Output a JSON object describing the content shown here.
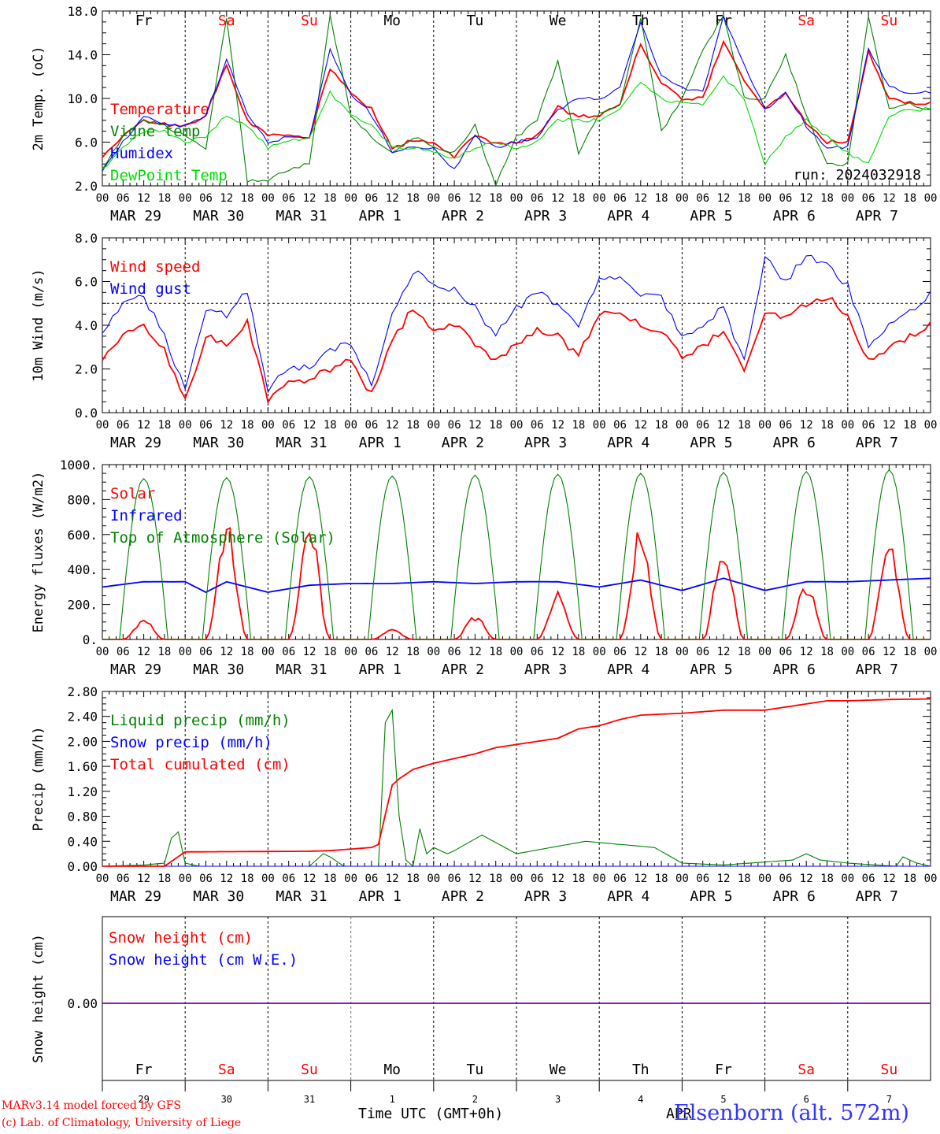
{
  "run_label": "run: 2024032918",
  "footer": {
    "model_line1": "MARv3.14 model forced by GFS",
    "model_line2": "(c) Lab. of Climatology, University of Liege",
    "time_label": "Time UTC (GMT+0h)",
    "station": "Elsenborn (alt. 572m)",
    "overlap_text": "APR"
  },
  "days": {
    "weekdays": [
      "Fr",
      "Sa",
      "Su",
      "Mo",
      "Tu",
      "We",
      "Th",
      "Fr",
      "Sa",
      "Su"
    ],
    "weekend_flags": [
      false,
      true,
      true,
      false,
      false,
      false,
      false,
      false,
      true,
      true
    ],
    "date_labels": [
      "MAR 29",
      "MAR 30",
      "MAR 31",
      "APR  1",
      "APR  2",
      "APR  3",
      "APR  4",
      "APR  5",
      "APR  6",
      "APR  7"
    ],
    "day_numbers": [
      "29",
      "30",
      "31",
      "1",
      "2",
      "3",
      "4",
      "5",
      "6",
      "7"
    ],
    "hour_ticks": [
      "00",
      "06",
      "12",
      "18"
    ]
  },
  "colors": {
    "red": "#ff0000",
    "green": "#008000",
    "blue": "#0000ff",
    "lightgreen": "#00dd00",
    "purple": "#8000a0",
    "weekend": "#ff0000"
  },
  "chart_data": [
    {
      "type": "line",
      "ylabel": "2m Temp. (oC)",
      "ylim": [
        2.0,
        18.0
      ],
      "yticks": [
        "2.0",
        "6.0",
        "10.0",
        "14.0",
        "18.0"
      ],
      "xlim_hours": [
        0,
        240
      ],
      "series": [
        {
          "name": "Temperature",
          "color": "red",
          "x": [
            0,
            6,
            12,
            18,
            24,
            30,
            36,
            42,
            48,
            54,
            60,
            66,
            72,
            78,
            84,
            90,
            96,
            102,
            108,
            114,
            120,
            126,
            132,
            138,
            144,
            150,
            156,
            162,
            168,
            174,
            180,
            186,
            192,
            198,
            204,
            210,
            216,
            222,
            228,
            234,
            240
          ],
          "values": [
            4.7,
            6.5,
            8.0,
            7.6,
            7.4,
            8.5,
            13.0,
            8.0,
            6.6,
            6.8,
            6.4,
            12.8,
            10.5,
            9.0,
            5.3,
            6.2,
            6.0,
            4.6,
            6.7,
            5.9,
            6.0,
            6.6,
            9.2,
            8.3,
            8.5,
            9.5,
            15.0,
            11.5,
            10.0,
            10.0,
            15.3,
            11.5,
            9.0,
            10.5,
            7.8,
            6.0,
            6.1,
            14.2,
            10.0,
            9.6,
            9.5
          ]
        },
        {
          "name": "Vigne temp",
          "color": "green",
          "x": [
            0,
            6,
            12,
            18,
            24,
            30,
            36,
            42,
            48,
            54,
            60,
            66,
            72,
            78,
            84,
            90,
            96,
            102,
            108,
            114,
            120,
            126,
            132,
            138,
            144,
            150,
            156,
            162,
            168,
            174,
            180,
            186,
            192,
            198,
            204,
            210,
            216,
            222,
            228,
            234,
            240
          ],
          "values": [
            3.5,
            6.5,
            8.0,
            7.5,
            6.5,
            5.5,
            17.5,
            2.5,
            2.5,
            3.5,
            4.0,
            17.5,
            8.5,
            6.5,
            5.0,
            6.5,
            5.5,
            5.0,
            7.5,
            2.0,
            6.5,
            8.0,
            13.5,
            5.0,
            8.5,
            9.5,
            17.5,
            7.0,
            10.0,
            14.5,
            17.5,
            10.0,
            10.0,
            14.0,
            8.5,
            4.0,
            4.0,
            17.5,
            9.0,
            9.5,
            9.0
          ]
        },
        {
          "name": "Humidex",
          "color": "blue",
          "x": [
            0,
            6,
            12,
            18,
            24,
            30,
            36,
            42,
            48,
            54,
            60,
            66,
            72,
            78,
            84,
            90,
            96,
            102,
            108,
            114,
            120,
            126,
            132,
            138,
            144,
            150,
            156,
            162,
            168,
            174,
            180,
            186,
            192,
            198,
            204,
            210,
            216,
            222,
            228,
            234,
            240
          ],
          "values": [
            3.3,
            6.0,
            8.5,
            7.5,
            7.5,
            8.5,
            13.5,
            8.5,
            6.0,
            6.5,
            6.5,
            14.5,
            10.5,
            8.5,
            5.0,
            5.5,
            5.5,
            3.5,
            6.5,
            5.5,
            6.0,
            6.5,
            9.0,
            10.0,
            10.0,
            11.0,
            17.0,
            12.0,
            11.0,
            10.5,
            17.5,
            13.0,
            9.0,
            10.5,
            7.5,
            5.5,
            5.5,
            14.5,
            11.0,
            10.5,
            10.5
          ]
        },
        {
          "name": "DewPoint Temp",
          "color": "lightgreen",
          "x": [
            0,
            6,
            12,
            18,
            24,
            30,
            36,
            42,
            48,
            54,
            60,
            66,
            72,
            78,
            84,
            90,
            96,
            102,
            108,
            114,
            120,
            126,
            132,
            138,
            144,
            150,
            156,
            162,
            168,
            174,
            180,
            186,
            192,
            198,
            204,
            210,
            216,
            222,
            228,
            234,
            240
          ],
          "values": [
            3.5,
            5.5,
            7.0,
            7.0,
            6.0,
            6.5,
            8.5,
            7.5,
            5.5,
            6.0,
            6.5,
            10.5,
            8.5,
            7.5,
            5.5,
            5.5,
            5.0,
            4.5,
            5.5,
            6.0,
            5.5,
            6.0,
            8.0,
            8.0,
            8.0,
            9.0,
            11.5,
            10.0,
            9.5,
            9.5,
            12.0,
            10.0,
            4.0,
            6.5,
            8.0,
            6.5,
            5.0,
            4.0,
            8.5,
            9.0,
            9.0
          ]
        }
      ],
      "annotations": [
        "run: 2024032918"
      ]
    },
    {
      "type": "line",
      "ylabel": "10m Wind (m/s)",
      "ylim": [
        0.0,
        8.0
      ],
      "yticks": [
        "0.0",
        "2.0",
        "4.0",
        "6.0",
        "8.0"
      ],
      "reference_line": 5.0,
      "xlim_hours": [
        0,
        240
      ],
      "series": [
        {
          "name": "Wind speed",
          "color": "red",
          "x": [
            0,
            6,
            12,
            18,
            24,
            30,
            36,
            42,
            48,
            54,
            60,
            66,
            72,
            78,
            84,
            90,
            96,
            102,
            108,
            114,
            120,
            126,
            132,
            138,
            144,
            150,
            156,
            162,
            168,
            174,
            180,
            186,
            192,
            198,
            204,
            210,
            216,
            222,
            228,
            234,
            240
          ],
          "values": [
            2.5,
            3.5,
            4.0,
            2.8,
            0.5,
            3.5,
            3.0,
            4.2,
            0.5,
            1.6,
            1.5,
            2.0,
            2.4,
            0.8,
            3.2,
            4.8,
            3.8,
            4.0,
            3.2,
            2.4,
            3.2,
            3.8,
            3.5,
            2.6,
            4.6,
            4.6,
            4.0,
            3.8,
            2.6,
            3.0,
            3.8,
            1.8,
            4.5,
            4.4,
            5.0,
            5.3,
            4.5,
            2.3,
            3.0,
            3.5,
            4.0
          ]
        },
        {
          "name": "Wind gust",
          "color": "blue",
          "x": [
            0,
            6,
            12,
            18,
            24,
            30,
            36,
            42,
            48,
            54,
            60,
            66,
            72,
            78,
            84,
            90,
            96,
            102,
            108,
            114,
            120,
            126,
            132,
            138,
            144,
            150,
            156,
            162,
            168,
            174,
            180,
            186,
            192,
            198,
            204,
            210,
            216,
            222,
            228,
            234,
            240
          ],
          "values": [
            3.6,
            5.0,
            5.3,
            3.5,
            1.0,
            4.8,
            4.5,
            5.6,
            1.0,
            2.1,
            2.0,
            2.8,
            3.2,
            1.3,
            4.5,
            6.5,
            5.8,
            5.6,
            4.8,
            3.5,
            4.8,
            5.5,
            5.0,
            4.0,
            6.0,
            6.3,
            5.5,
            5.3,
            3.5,
            4.0,
            4.8,
            2.3,
            7.1,
            6.0,
            7.2,
            6.8,
            5.8,
            3.0,
            4.0,
            4.6,
            5.5
          ]
        }
      ]
    },
    {
      "type": "line",
      "ylabel": "Energy fluxes (W/m2)",
      "ylim": [
        0,
        1000
      ],
      "yticks": [
        "0.",
        "200.",
        "400.",
        "600.",
        "800.",
        "1000."
      ],
      "xlim_hours": [
        0,
        240
      ],
      "series": [
        {
          "name": "Solar",
          "color": "red",
          "peaks": [
            120,
            690,
            690,
            60,
            140,
            280,
            660,
            550,
            330,
            590
          ]
        },
        {
          "name": "Infrared",
          "color": "blue",
          "x": [
            0,
            12,
            24,
            30,
            36,
            48,
            60,
            72,
            84,
            96,
            108,
            120,
            132,
            144,
            156,
            168,
            180,
            192,
            204,
            216,
            228,
            240
          ],
          "values": [
            300,
            330,
            330,
            270,
            330,
            270,
            310,
            320,
            320,
            330,
            320,
            330,
            330,
            300,
            340,
            280,
            350,
            280,
            330,
            330,
            340,
            350
          ]
        },
        {
          "name": "Top of Atmosphere (Solar)",
          "color": "green",
          "peaks": [
            920,
            925,
            930,
            935,
            940,
            945,
            950,
            955,
            960,
            970
          ]
        }
      ]
    },
    {
      "type": "line",
      "ylabel": "Precip (mm/h)",
      "ylim": [
        0.0,
        2.8
      ],
      "yticks": [
        "0.00",
        "0.40",
        "0.80",
        "1.20",
        "1.60",
        "2.00",
        "2.40",
        "2.80"
      ],
      "xlim_hours": [
        0,
        240
      ],
      "series": [
        {
          "name": "Liquid precip (mm/h)",
          "color": "green",
          "x": [
            0,
            12,
            18,
            20,
            22,
            24,
            28,
            60,
            64,
            66,
            70,
            72,
            78,
            80,
            82,
            84,
            86,
            88,
            90,
            92,
            94,
            96,
            100,
            102,
            110,
            120,
            130,
            140,
            150,
            160,
            168,
            180,
            200,
            204,
            208,
            216,
            230,
            232,
            236,
            240
          ],
          "values": [
            0,
            0.02,
            0.05,
            0.45,
            0.55,
            0.05,
            0,
            0,
            0.2,
            0.15,
            0,
            0,
            0,
            0,
            2.3,
            2.5,
            0.8,
            0.1,
            0,
            0.6,
            0.2,
            0.3,
            0.2,
            0.25,
            0.5,
            0.2,
            0.3,
            0.4,
            0.35,
            0.3,
            0.05,
            0.02,
            0.1,
            0.2,
            0.1,
            0.05,
            0,
            0.15,
            0.05,
            0
          ]
        },
        {
          "name": "Snow precip (mm/h)",
          "color": "blue",
          "x": [
            0,
            240
          ],
          "values": [
            0,
            0
          ]
        },
        {
          "name": "Total cumulated (cm)",
          "color": "red",
          "x": [
            0,
            18,
            24,
            60,
            66,
            78,
            80,
            84,
            86,
            90,
            96,
            108,
            114,
            120,
            126,
            132,
            138,
            144,
            150,
            156,
            168,
            180,
            192,
            204,
            210,
            216,
            228,
            240
          ],
          "values": [
            0,
            0,
            0.23,
            0.24,
            0.25,
            0.3,
            0.35,
            1.3,
            1.4,
            1.55,
            1.65,
            1.8,
            1.9,
            1.95,
            2.0,
            2.05,
            2.2,
            2.25,
            2.35,
            2.42,
            2.45,
            2.5,
            2.5,
            2.6,
            2.65,
            2.65,
            2.67,
            2.68
          ]
        }
      ]
    },
    {
      "type": "line",
      "ylabel": "Snow height (cm)",
      "yticks": [
        "0.00"
      ],
      "xlim_hours": [
        0,
        240
      ],
      "series": [
        {
          "name": "Snow height (cm)",
          "color": "red",
          "x": [
            0,
            240
          ],
          "values": [
            0,
            0
          ]
        },
        {
          "name": "Snow height (cm W.E.)",
          "color": "blue",
          "x": [
            0,
            240
          ],
          "values": [
            0,
            0
          ]
        }
      ]
    }
  ]
}
